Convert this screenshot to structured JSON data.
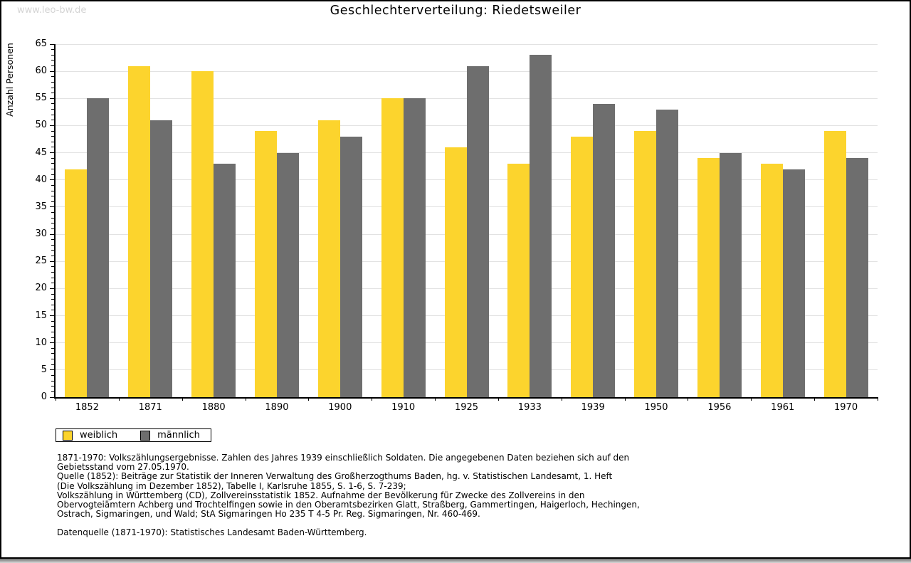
{
  "watermark": "www.leo-bw.de",
  "title": "Geschlechterverteilung: Riedetsweiler",
  "chart_data": {
    "type": "bar",
    "title": "Geschlechterverteilung: Riedetsweiler",
    "xlabel": "",
    "ylabel": "Anzahl Personen",
    "ylim": [
      0,
      65
    ],
    "ytick_step": 5,
    "grid": true,
    "legend_position": "bottom-left",
    "categories": [
      "1852",
      "1871",
      "1880",
      "1890",
      "1900",
      "1910",
      "1925",
      "1933",
      "1939",
      "1950",
      "1956",
      "1961",
      "1970"
    ],
    "series": [
      {
        "name": "weiblich",
        "color": "#FCD42D",
        "values": [
          42,
          61,
          60,
          49,
          51,
          55,
          46,
          43,
          48,
          49,
          44,
          43,
          49
        ]
      },
      {
        "name": "männlich",
        "color": "#6E6E6E",
        "values": [
          55,
          51,
          43,
          45,
          48,
          55,
          61,
          63,
          54,
          53,
          45,
          42,
          44
        ]
      }
    ]
  },
  "footnotes": [
    "1871-1970: Volkszählungsergebnisse. Zahlen des Jahres 1939 einschließlich Soldaten. Die angegebenen Daten beziehen sich auf den",
    "Gebietsstand vom 27.05.1970.",
    "Quelle (1852): Beiträge zur Statistik der Inneren Verwaltung des Großherzogthums Baden, hg. v. Statistischen Landesamt, 1. Heft",
    "(Die Volkszählung im Dezember 1852), Tabelle I, Karlsruhe 1855, S. 1-6, S. 7-239;",
    "Volkszählung in Württemberg (CD), Zollvereinsstatistik 1852. Aufnahme der Bevölkerung für Zwecke des Zollvereins in den",
    "Obervogteiämtern Achberg und Trochtelfingen sowie in den Oberamtsbezirken Glatt, Straßberg, Gammertingen, Haigerloch, Hechingen,",
    "Ostrach, Sigmaringen, und Wald; StA Sigmaringen Ho 235 T 4-5 Pr. Reg. Sigmaringen, Nr. 460-469."
  ],
  "datasource": "Datenquelle (1871-1970): Statistisches Landesamt Baden-Württemberg."
}
